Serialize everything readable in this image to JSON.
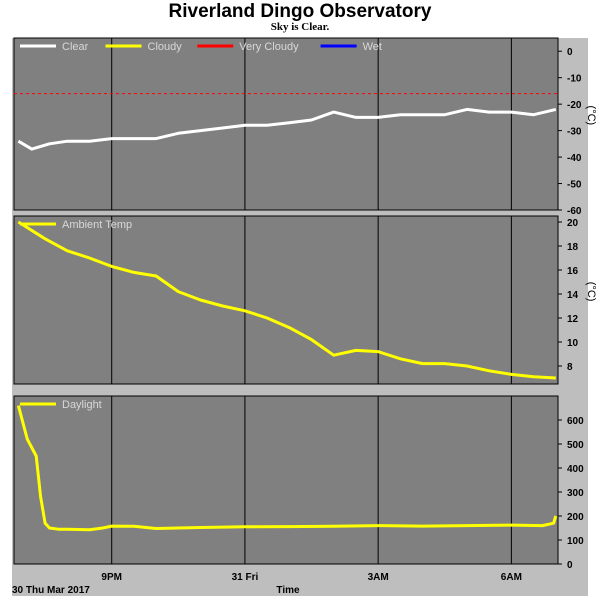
{
  "title": "Riverland Dingo Observatory",
  "subtitle": "Sky is Clear.",
  "x_axis": {
    "label": "Time",
    "date_label": "30 Thu Mar 2017",
    "ticks": [
      {
        "label": "9PM",
        "t": 4
      },
      {
        "label": "31 Fri",
        "t": 7
      },
      {
        "label": "3AM",
        "t": 10
      },
      {
        "label": "6AM",
        "t": 13
      }
    ],
    "range": [
      1.8,
      14.05
    ]
  },
  "chart_data": [
    {
      "type": "line",
      "unit": "(°C)",
      "ylim": [
        -60,
        5
      ],
      "yticks": [
        0,
        -10,
        -20,
        -30,
        -40,
        -50,
        -60
      ],
      "legend": [
        {
          "name": "Clear",
          "color": "#ffffff"
        },
        {
          "name": "Cloudy",
          "color": "#ffff00"
        },
        {
          "name": "Very Cloudy",
          "color": "#ff0000"
        },
        {
          "name": "Wet",
          "color": "#0000ff"
        }
      ],
      "threshold": {
        "value": -16,
        "color": "#ff0000"
      },
      "series": [
        {
          "name": "Clear",
          "color": "#ffffff",
          "x": [
            1.9,
            2.2,
            2.6,
            3.0,
            3.5,
            4.0,
            4.5,
            5.0,
            5.5,
            6.0,
            6.5,
            7.0,
            7.5,
            8.0,
            8.5,
            9.0,
            9.5,
            10.0,
            10.5,
            11.0,
            11.5,
            12.0,
            12.5,
            13.0,
            13.5,
            14.0
          ],
          "y": [
            -34,
            -37,
            -35,
            -34,
            -34,
            -33,
            -33,
            -33,
            -31,
            -30,
            -29,
            -28,
            -28,
            -27,
            -26,
            -23,
            -25,
            -25,
            -24,
            -24,
            -24,
            -22,
            -23,
            -23,
            -24,
            -22
          ]
        }
      ]
    },
    {
      "type": "line",
      "unit": "(°C)",
      "ylim": [
        6.5,
        20.5
      ],
      "yticks": [
        20,
        18,
        16,
        14,
        12,
        10,
        8
      ],
      "legend": [
        {
          "name": "Ambient Temp",
          "color": "#ffff00"
        }
      ],
      "series": [
        {
          "name": "Ambient Temp",
          "color": "#ffff00",
          "x": [
            1.9,
            2.5,
            3.0,
            3.5,
            4.0,
            4.5,
            5.0,
            5.5,
            6.0,
            6.5,
            7.0,
            7.5,
            8.0,
            8.5,
            9.0,
            9.5,
            10.0,
            10.5,
            11.0,
            11.5,
            12.0,
            12.5,
            13.0,
            13.5,
            14.0
          ],
          "y": [
            20,
            18.6,
            17.6,
            17.0,
            16.3,
            15.8,
            15.5,
            14.2,
            13.5,
            13.0,
            12.6,
            12.0,
            11.2,
            10.2,
            8.9,
            9.3,
            9.2,
            8.6,
            8.2,
            8.2,
            8.0,
            7.6,
            7.3,
            7.1,
            7.0
          ]
        }
      ]
    },
    {
      "type": "line",
      "unit": "",
      "ylim": [
        0,
        700
      ],
      "yticks": [
        600,
        500,
        400,
        300,
        200,
        100,
        0
      ],
      "legend": [
        {
          "name": "Daylight",
          "color": "#ffff00"
        }
      ],
      "series": [
        {
          "name": "Daylight",
          "color": "#ffff00",
          "x": [
            1.9,
            2.1,
            2.3,
            2.4,
            2.5,
            2.6,
            2.8,
            3.0,
            3.5,
            3.8,
            4.0,
            4.5,
            5.0,
            6.0,
            7.0,
            8.0,
            9.0,
            10.0,
            11.0,
            12.0,
            13.0,
            13.7,
            13.95,
            14.0
          ],
          "y": [
            660,
            520,
            450,
            280,
            170,
            150,
            145,
            145,
            143,
            150,
            158,
            157,
            148,
            152,
            155,
            156,
            157,
            160,
            158,
            160,
            162,
            160,
            170,
            200
          ]
        }
      ]
    }
  ]
}
